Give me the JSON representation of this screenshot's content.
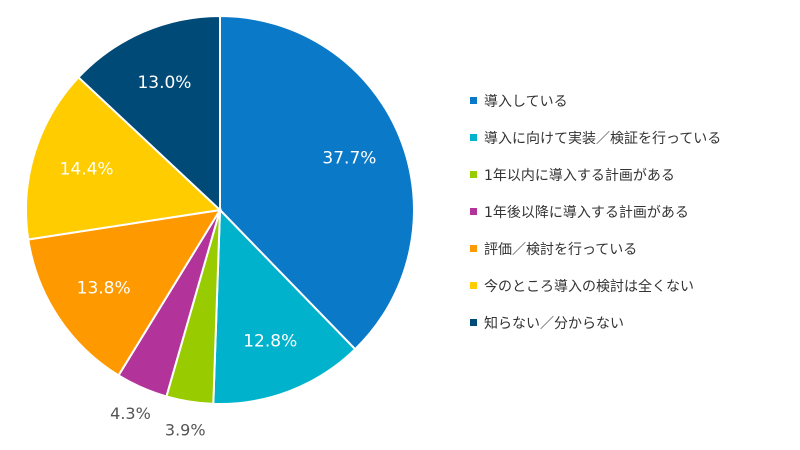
{
  "chart_data": {
    "type": "pie",
    "series": [
      {
        "values": [
          37.7,
          12.8,
          3.9,
          4.3,
          13.8,
          14.4,
          13.0
        ],
        "labels": [
          "37.7%",
          "12.8%",
          "3.9%",
          "4.3%",
          "13.8%",
          "14.4%",
          "13.0%"
        ]
      }
    ],
    "categories": [
      "導入している",
      "導入に向けて実装／検証を行っている",
      "1年以内に導入する計画がある",
      "1年後以降に導入する計画がある",
      "評価／検討を行っている",
      "今のところ導入の検討は全くない",
      "知らない／分からない"
    ],
    "colors": [
      "#0a79c8",
      "#00b2cc",
      "#99cc00",
      "#b2349b",
      "#ff9900",
      "#ffcc00",
      "#004a78"
    ],
    "legend_position": "right",
    "start_angle": "12 o'clock",
    "direction": "clockwise"
  }
}
